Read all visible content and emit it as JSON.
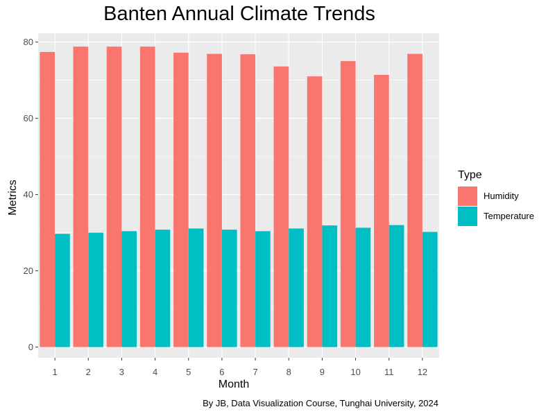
{
  "chart_data": {
    "type": "bar",
    "title": "Banten Annual Climate Trends",
    "xlabel": "Month",
    "ylabel": "Metrics",
    "caption": "By JB, Data Visualization Course, Tunghai University, 2024",
    "categories": [
      "1",
      "2",
      "3",
      "4",
      "5",
      "6",
      "7",
      "8",
      "9",
      "10",
      "11",
      "12"
    ],
    "ylim": [
      -2.8,
      82.3
    ],
    "yticks": [
      0,
      20,
      40,
      60,
      80
    ],
    "grid": true,
    "legend_placement": "right",
    "legend_title": "Type",
    "series": [
      {
        "name": "Humidity",
        "color": "#F8766D",
        "values": [
          77.4,
          78.8,
          78.8,
          78.8,
          77.2,
          76.9,
          76.8,
          73.6,
          71.0,
          75.0,
          71.4,
          76.9
        ]
      },
      {
        "name": "Temperature",
        "color": "#00BFC4",
        "values": [
          29.7,
          30.0,
          30.4,
          30.8,
          31.1,
          30.8,
          30.4,
          31.1,
          31.9,
          31.3,
          32.0,
          30.2
        ]
      }
    ]
  }
}
